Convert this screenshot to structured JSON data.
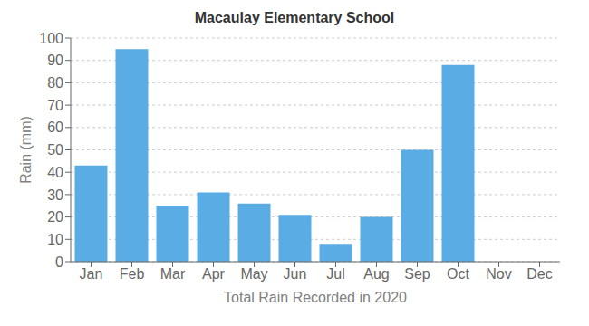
{
  "chart_data": {
    "type": "bar",
    "title": "Macaulay Elementary School",
    "xlabel": "Total Rain Recorded in 2020",
    "ylabel": "Rain (mm)",
    "categories": [
      "Jan",
      "Feb",
      "Mar",
      "Apr",
      "May",
      "Jun",
      "Jul",
      "Aug",
      "Sep",
      "Oct",
      "Nov",
      "Dec"
    ],
    "values": [
      43,
      95,
      25,
      31,
      26,
      21,
      8,
      20,
      50,
      88,
      0,
      0
    ],
    "color": "#5AACE4",
    "ylim": [
      0,
      100
    ],
    "yticks": [
      0,
      10,
      20,
      30,
      40,
      50,
      60,
      70,
      80,
      90,
      100
    ],
    "grid": true
  }
}
